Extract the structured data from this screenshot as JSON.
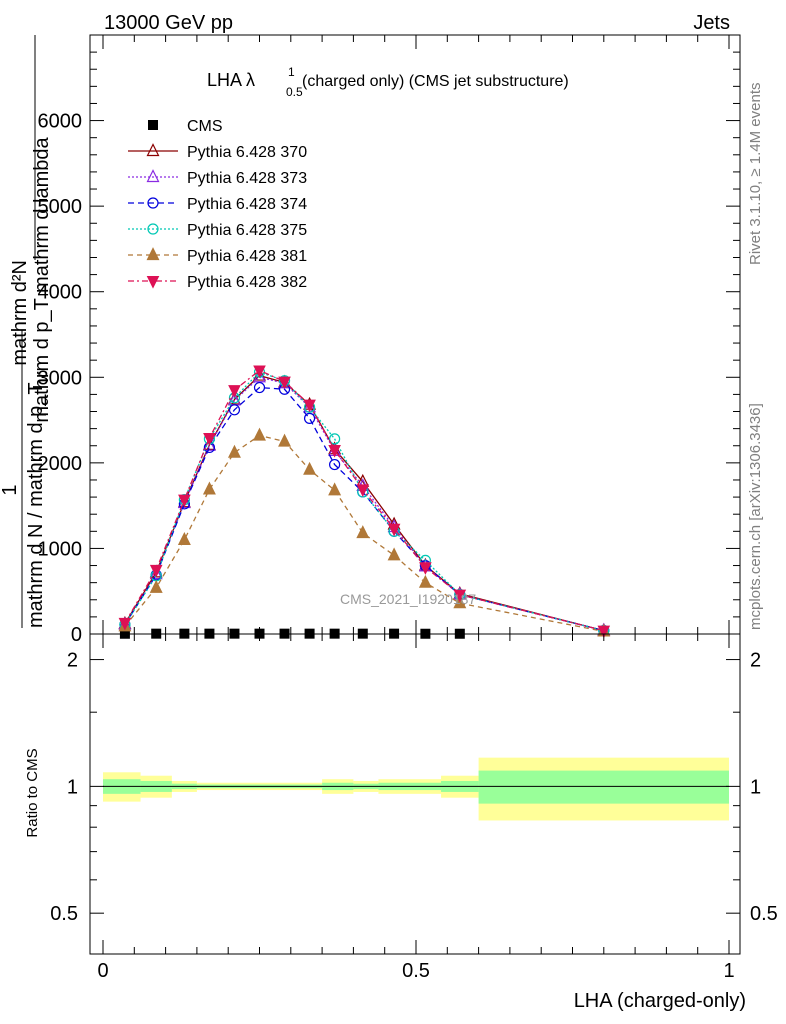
{
  "header": {
    "left": "13000 GeV pp",
    "right": "Jets",
    "side_top": "Rivet 3.1.10, ≥ 1.4M events",
    "side_bottom": "mcplots.cern.ch [arXiv:1306.3436]"
  },
  "chart_data": [
    {
      "type": "line",
      "title": "LHA λ",
      "title_sup": "1",
      "title_sub": "0.5",
      "title_rest": "(charged only) (CMS jet substructure)",
      "ylabel_numerator": "mathrm d²N",
      "ylabel_denominator": "mathrm d p_T mathrm d lambda",
      "ylabel_prefactor_num": "1",
      "ylabel_prefactor_den": "mathrm d N / mathrm d p_T",
      "ylabel_sub": "T",
      "watermark": "CMS_2021_I1920187",
      "xlim": [
        0,
        1
      ],
      "ylim": [
        0,
        7000
      ],
      "yticks": [
        {
          "value": 0,
          "label": "0"
        },
        {
          "value": 1000,
          "label": "1000"
        },
        {
          "value": 2000,
          "label": "2000"
        },
        {
          "value": 3000,
          "label": "3000"
        },
        {
          "value": 4000,
          "label": "4000"
        },
        {
          "value": 5000,
          "label": "5000"
        },
        {
          "value": 6000,
          "label": "6000"
        }
      ],
      "legend_position": "top-left",
      "series": [
        {
          "name": "CMS",
          "color": "#000000",
          "marker": "square",
          "x": [
            0.035,
            0.085,
            0.13,
            0.17,
            0.21,
            0.25,
            0.29,
            0.33,
            0.37,
            0.415,
            0.465,
            0.515,
            0.57
          ],
          "values": [
            3,
            4,
            4,
            4,
            4,
            4,
            4,
            4,
            4,
            4,
            4,
            3,
            3
          ]
        },
        {
          "name": "Pythia 6.428 370",
          "color": "#8b0000",
          "marker": "triangle-open",
          "dash": "",
          "x": [
            0.035,
            0.085,
            0.13,
            0.17,
            0.21,
            0.25,
            0.29,
            0.33,
            0.37,
            0.415,
            0.465,
            0.515,
            0.57,
            0.8
          ],
          "values": [
            120,
            720,
            1540,
            2210,
            2740,
            3020,
            2940,
            2680,
            2160,
            1780,
            1280,
            800,
            470,
            40
          ]
        },
        {
          "name": "Pythia 6.428 373",
          "color": "#8a2be2",
          "marker": "triangle-open",
          "dash": "2,2",
          "x": [
            0.035,
            0.085,
            0.13,
            0.17,
            0.21,
            0.25,
            0.29,
            0.33,
            0.37,
            0.415,
            0.465,
            0.515,
            0.57,
            0.8
          ],
          "values": [
            110,
            700,
            1530,
            2200,
            2730,
            3000,
            2930,
            2650,
            2140,
            1730,
            1250,
            790,
            460,
            40
          ]
        },
        {
          "name": "Pythia 6.428 374",
          "color": "#0000dd",
          "marker": "circle-open",
          "dash": "6,4",
          "x": [
            0.035,
            0.085,
            0.13,
            0.17,
            0.21,
            0.25,
            0.29,
            0.33,
            0.37,
            0.415,
            0.465,
            0.515,
            0.57,
            0.8
          ],
          "values": [
            110,
            690,
            1520,
            2180,
            2620,
            2880,
            2860,
            2520,
            1980,
            1660,
            1200,
            800,
            460,
            40
          ]
        },
        {
          "name": "Pythia 6.428 375",
          "color": "#00c8b4",
          "marker": "circle-open",
          "dash": "2,2",
          "x": [
            0.035,
            0.085,
            0.13,
            0.17,
            0.21,
            0.25,
            0.29,
            0.33,
            0.37,
            0.415,
            0.465,
            0.515,
            0.57,
            0.8
          ],
          "values": [
            110,
            680,
            1570,
            2280,
            2760,
            3060,
            2960,
            2650,
            2280,
            1660,
            1200,
            860,
            460,
            40
          ]
        },
        {
          "name": "Pythia 6.428 381",
          "color": "#b07838",
          "marker": "triangle-filled",
          "dash": "5,4",
          "x": [
            0.035,
            0.085,
            0.13,
            0.17,
            0.21,
            0.25,
            0.29,
            0.33,
            0.37,
            0.415,
            0.465,
            0.515,
            0.57,
            0.8
          ],
          "values": [
            90,
            540,
            1100,
            1690,
            2120,
            2320,
            2250,
            1920,
            1680,
            1180,
            920,
            600,
            360,
            30
          ]
        },
        {
          "name": "Pythia 6.428 382",
          "color": "#dd1155",
          "marker": "triangle-down-filled",
          "dash": "6,3,2,3",
          "x": [
            0.035,
            0.085,
            0.13,
            0.17,
            0.21,
            0.25,
            0.29,
            0.33,
            0.37,
            0.415,
            0.465,
            0.515,
            0.57,
            0.8
          ],
          "values": [
            130,
            750,
            1570,
            2290,
            2850,
            3080,
            2950,
            2680,
            2150,
            1690,
            1230,
            780,
            460,
            40
          ]
        }
      ]
    },
    {
      "type": "area",
      "ylabel": "Ratio to CMS",
      "xlabel": "LHA (charged-only)",
      "ylim": [
        0.4,
        2.3
      ],
      "yticks": [
        {
          "value": 0.5,
          "label": "0.5"
        },
        {
          "value": 1,
          "label": "1"
        },
        {
          "value": 2,
          "label": "2"
        }
      ],
      "xticks": [
        {
          "value": 0,
          "label": "0"
        },
        {
          "value": 0.5,
          "label": "0.5"
        },
        {
          "value": 1,
          "label": "1"
        }
      ],
      "band_colors": {
        "outer": "#ffff99",
        "inner": "#99ff99",
        "reference_line": "#000000"
      },
      "bands": [
        {
          "x0": 0.0,
          "x1": 0.06,
          "inner": [
            0.96,
            1.04
          ],
          "outer": [
            0.92,
            1.08
          ]
        },
        {
          "x0": 0.06,
          "x1": 0.11,
          "inner": [
            0.97,
            1.03
          ],
          "outer": [
            0.94,
            1.06
          ]
        },
        {
          "x0": 0.11,
          "x1": 0.15,
          "inner": [
            0.985,
            1.015
          ],
          "outer": [
            0.97,
            1.03
          ]
        },
        {
          "x0": 0.15,
          "x1": 0.35,
          "inner": [
            0.99,
            1.01
          ],
          "outer": [
            0.98,
            1.02
          ]
        },
        {
          "x0": 0.35,
          "x1": 0.4,
          "inner": [
            0.98,
            1.02
          ],
          "outer": [
            0.96,
            1.04
          ]
        },
        {
          "x0": 0.4,
          "x1": 0.44,
          "inner": [
            0.985,
            1.015
          ],
          "outer": [
            0.97,
            1.03
          ]
        },
        {
          "x0": 0.44,
          "x1": 0.54,
          "inner": [
            0.98,
            1.02
          ],
          "outer": [
            0.96,
            1.04
          ]
        },
        {
          "x0": 0.54,
          "x1": 0.6,
          "inner": [
            0.97,
            1.03
          ],
          "outer": [
            0.94,
            1.06
          ]
        },
        {
          "x0": 0.6,
          "x1": 1.0,
          "inner": [
            0.91,
            1.09
          ],
          "outer": [
            0.83,
            1.17
          ]
        }
      ]
    }
  ]
}
